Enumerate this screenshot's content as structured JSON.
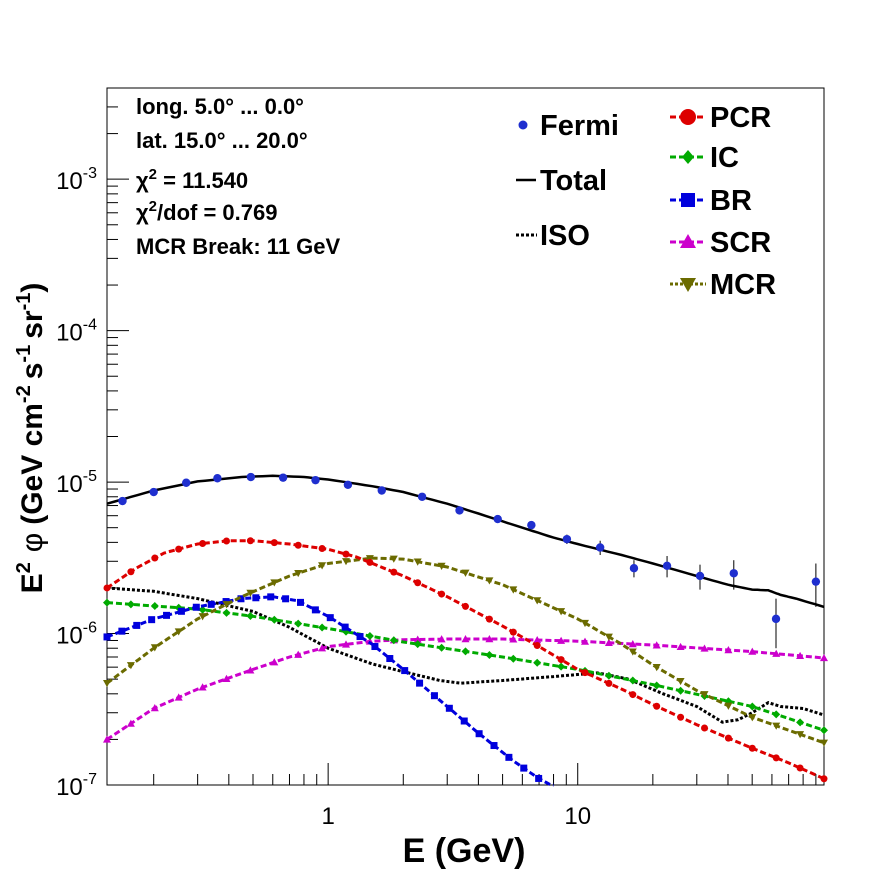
{
  "chart_data": {
    "type": "line",
    "log_x": true,
    "log_y": true,
    "xlim": [
      0.13,
      97
    ],
    "ylim": [
      1e-07,
      0.004
    ],
    "xlabel": "E (GeV)",
    "ylabel": {
      "base": "E",
      "sup1": "2",
      "phi": "φ",
      "rest": "(GeV cm",
      "sup2": "-2",
      "mid": "s",
      "sup3": "-1",
      "mid2": "sr",
      "sup4": "-1",
      "end": ")"
    },
    "x_ticks": [
      {
        "value": 1,
        "label": "1"
      },
      {
        "value": 10,
        "label": "10"
      }
    ],
    "y_ticks": [
      {
        "value": 1e-07,
        "base": "10",
        "exp": "-7"
      },
      {
        "value": 1e-06,
        "base": "10",
        "exp": "-6"
      },
      {
        "value": 1e-05,
        "base": "10",
        "exp": "-5"
      },
      {
        "value": 0.0001,
        "base": "10",
        "exp": "-4"
      },
      {
        "value": 0.001,
        "base": "10",
        "exp": "-3"
      }
    ],
    "info": {
      "longitude": "long. 5.0° ... 0.0°",
      "latitude": "lat. 15.0° ... 20.0°",
      "chi2_sym": "χ",
      "chi2_sup": "2",
      "chi2_val": " = 11.540",
      "chi2dof_sym": "χ",
      "chi2dof_sup": "2",
      "chi2dof_val": "/dof = 0.769",
      "mcr_break": "MCR Break: 11 GeV"
    },
    "legend": {
      "fermi": "Fermi",
      "total": "Total",
      "iso": "ISO",
      "pcr": "PCR",
      "ic": "IC",
      "br": "BR",
      "scr": "SCR",
      "mcr": "MCR"
    },
    "fermi": {
      "color": "#1f2fcf",
      "points": [
        {
          "x": 0.15,
          "y": 7.5e-06,
          "err": 0
        },
        {
          "x": 0.2,
          "y": 8.6e-06,
          "err": 0
        },
        {
          "x": 0.27,
          "y": 9.9e-06,
          "err": 0
        },
        {
          "x": 0.36,
          "y": 1.06e-05,
          "err": 0
        },
        {
          "x": 0.49,
          "y": 1.08e-05,
          "err": 0
        },
        {
          "x": 0.66,
          "y": 1.07e-05,
          "err": 0
        },
        {
          "x": 0.89,
          "y": 1.03e-05,
          "err": 0
        },
        {
          "x": 1.2,
          "y": 9.6e-06,
          "err": 0
        },
        {
          "x": 1.64,
          "y": 8.8e-06,
          "err": 0
        },
        {
          "x": 2.38,
          "y": 8e-06,
          "err": 0
        },
        {
          "x": 3.36,
          "y": 6.5e-06,
          "err": 0
        },
        {
          "x": 4.78,
          "y": 5.7e-06,
          "err": 0
        },
        {
          "x": 6.52,
          "y": 5.2e-06,
          "err": 0
        },
        {
          "x": 9.05,
          "y": 4.2e-06,
          "err": 3e-07
        },
        {
          "x": 12.3,
          "y": 3.7e-06,
          "err": 4e-07
        },
        {
          "x": 16.8,
          "y": 2.7e-06,
          "err": 3.5e-07
        },
        {
          "x": 22.8,
          "y": 2.8e-06,
          "err": 4.5e-07
        },
        {
          "x": 30.9,
          "y": 2.4e-06,
          "err": 4.5e-07
        },
        {
          "x": 42.2,
          "y": 2.5e-06,
          "err": 5.5e-07
        },
        {
          "x": 62.3,
          "y": 1.25e-06,
          "err": 4.5e-07
        },
        {
          "x": 90.0,
          "y": 2.2e-06,
          "err": 7e-07
        }
      ]
    },
    "series": [
      {
        "name": "Total",
        "color": "#000000",
        "style": "solid",
        "marker": "none",
        "x": [
          0.13,
          0.2,
          0.3,
          0.45,
          0.6,
          0.8,
          1.0,
          1.5,
          2.0,
          3.0,
          4.0,
          6.0,
          8.0,
          10.0,
          15.0,
          20.0,
          30.0,
          40.0,
          50.0,
          58.0,
          65.0,
          75.0,
          97.0
        ],
        "y": [
          7.2e-06,
          8.8e-06,
          1.01e-05,
          1.08e-05,
          1.1e-05,
          1.08e-05,
          1.04e-05,
          9.4e-06,
          8.6e-06,
          7.2e-06,
          6.2e-06,
          5e-06,
          4.3e-06,
          3.9e-06,
          3.3e-06,
          2.9e-06,
          2.4e-06,
          2.1e-06,
          1.95e-06,
          1.93e-06,
          1.8e-06,
          1.7e-06,
          1.5e-06
        ]
      },
      {
        "name": "PCR",
        "color": "#dd0000",
        "style": "dashed",
        "marker": "circle",
        "x": [
          0.13,
          0.17,
          0.22,
          0.3,
          0.4,
          0.5,
          0.7,
          1.0,
          1.3,
          2.0,
          3.0,
          5.0,
          7.0,
          10.0,
          15.0,
          20.0,
          30.0,
          50.0,
          70.0,
          97.0
        ],
        "y": [
          2e-06,
          2.7e-06,
          3.4e-06,
          3.9e-06,
          4.1e-06,
          4.1e-06,
          3.9e-06,
          3.6e-06,
          3.2e-06,
          2.4e-06,
          1.75e-06,
          1.12e-06,
          8.2e-07,
          5.8e-07,
          4.3e-07,
          3.4e-07,
          2.5e-07,
          1.75e-07,
          1.4e-07,
          1.1e-07
        ]
      },
      {
        "name": "IC",
        "color": "#00aa00",
        "style": "dashed",
        "marker": "diamond",
        "x": [
          0.13,
          0.3,
          0.5,
          1.0,
          2.0,
          5.0,
          10.0,
          20.0,
          50.0,
          97.0
        ],
        "y": [
          1.6e-06,
          1.45e-06,
          1.3e-06,
          1.08e-06,
          8.8e-07,
          7e-07,
          5.8e-07,
          4.6e-07,
          3.3e-07,
          2.3e-07
        ]
      },
      {
        "name": "BR",
        "color": "#0000dd",
        "style": "dashed",
        "marker": "square",
        "x": [
          0.13,
          0.2,
          0.3,
          0.45,
          0.6,
          0.75,
          1.0,
          1.5,
          2.0,
          3.0,
          4.0,
          5.5,
          7.0,
          8.0
        ],
        "y": [
          9.5e-07,
          1.25e-06,
          1.5e-06,
          1.7e-06,
          1.75e-06,
          1.65e-06,
          1.3e-06,
          8.5e-07,
          5.8e-07,
          3.3e-07,
          2.2e-07,
          1.45e-07,
          1.1e-07,
          9.8e-08
        ]
      },
      {
        "name": "SCR",
        "color": "#cc00cc",
        "style": "dashed",
        "marker": "triangle",
        "x": [
          0.13,
          0.2,
          0.3,
          0.5,
          0.7,
          1.0,
          1.5,
          2.0,
          3.0,
          5.0,
          10.0,
          20.0,
          50.0,
          97.0
        ],
        "y": [
          2e-07,
          3.2e-07,
          4.3e-07,
          5.8e-07,
          7e-07,
          8.2e-07,
          8.9e-07,
          9.1e-07,
          9.2e-07,
          9.2e-07,
          8.9e-07,
          8.4e-07,
          7.6e-07,
          6.9e-07
        ]
      },
      {
        "name": "MCR",
        "color": "#6b6b00",
        "style": "dashed",
        "marker": "triangle-down",
        "x": [
          0.13,
          0.2,
          0.3,
          0.45,
          0.7,
          1.0,
          1.5,
          2.0,
          3.0,
          5.0,
          10.0,
          15.0,
          20.0,
          30.0,
          50.0,
          70.0,
          97.0
        ],
        "y": [
          4.7e-07,
          8e-07,
          1.25e-06,
          1.75e-06,
          2.4e-06,
          2.9e-06,
          3.15e-06,
          3.1e-06,
          2.75e-06,
          2.1e-06,
          1.25e-06,
          8.5e-07,
          6.2e-07,
          4.2e-07,
          2.8e-07,
          2.3e-07,
          1.9e-07
        ]
      },
      {
        "name": "ISO",
        "color": "#000000",
        "style": "dotted",
        "marker": "none",
        "x": [
          0.13,
          0.2,
          0.3,
          0.5,
          0.7,
          1.0,
          1.5,
          2.0,
          2.8,
          3.4,
          5.0,
          8.0,
          12.0,
          16.0,
          22.0,
          30.0,
          38.0,
          44.0,
          50.0,
          58.0,
          65.0,
          80.0,
          97.0
        ],
        "y": [
          2e-06,
          1.9e-06,
          1.7e-06,
          1.4e-06,
          1.1e-06,
          8e-07,
          6.3e-07,
          5.6e-07,
          4.9e-07,
          4.7e-07,
          4.9e-07,
          5.2e-07,
          5.5e-07,
          5e-07,
          4e-07,
          3.3e-07,
          2.6e-07,
          2.7e-07,
          3e-07,
          3.5e-07,
          3.3e-07,
          3.2e-07,
          2.9e-07
        ]
      }
    ]
  }
}
